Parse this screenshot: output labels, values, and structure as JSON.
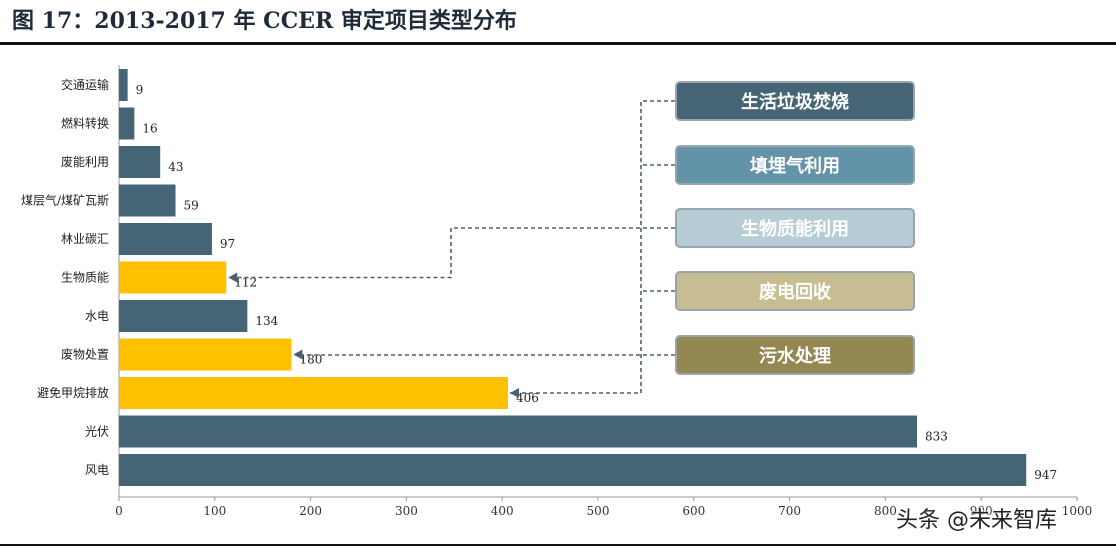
{
  "header": {
    "title": "图 17：2013-2017 年 CCER 审定项目类型分布"
  },
  "chart_data": {
    "type": "bar",
    "orientation": "horizontal",
    "categories": [
      "交通运输",
      "燃料转换",
      "废能利用",
      "煤层气/煤矿瓦斯",
      "林业碳汇",
      "生物质能",
      "水电",
      "废物处置",
      "避免甲烷排放",
      "光伏",
      "风电"
    ],
    "values": [
      9,
      16,
      43,
      59,
      97,
      112,
      134,
      180,
      406,
      833,
      947
    ],
    "highlighted": [
      false,
      false,
      false,
      false,
      false,
      true,
      false,
      true,
      true,
      false,
      false
    ],
    "xlim": [
      0,
      1000
    ],
    "xticks": [
      0,
      100,
      200,
      300,
      400,
      500,
      600,
      700,
      800,
      900,
      1000
    ],
    "grid": false,
    "colors": {
      "default": "#456475",
      "highlight": "#FFC000",
      "connector": "#4a6070"
    }
  },
  "legend": {
    "items": [
      {
        "label": "生活垃圾焚烧",
        "bg": "#456475"
      },
      {
        "label": "填埋气利用",
        "bg": "#6393a8"
      },
      {
        "label": "生物质能利用",
        "bg": "#b8ccd6"
      },
      {
        "label": "废电回收",
        "bg": "#c7bd92"
      },
      {
        "label": "污水处理",
        "bg": "#938752"
      }
    ]
  },
  "watermark": {
    "text": "头条 @未来智库"
  }
}
